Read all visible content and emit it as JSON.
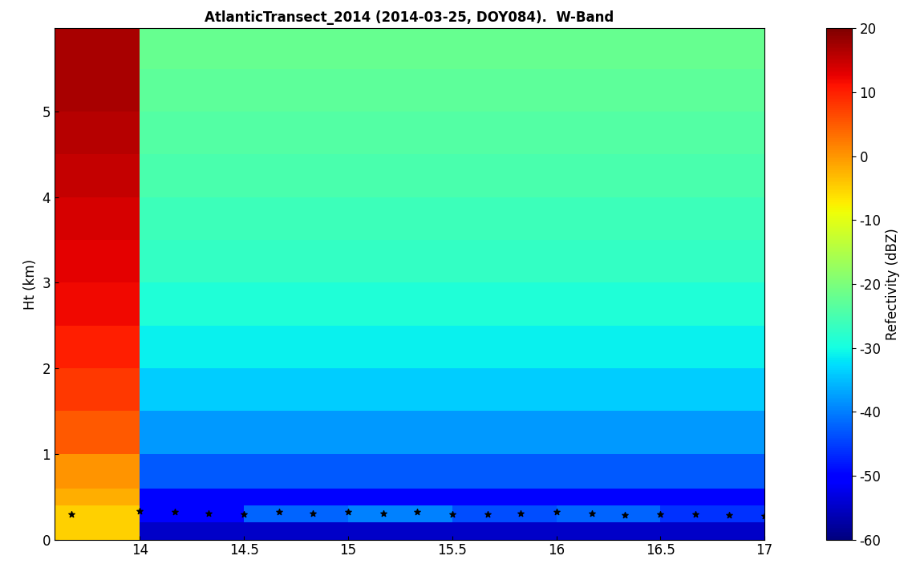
{
  "chart_data": {
    "type": "heatmap",
    "title": "AtlanticTransect_2014 (2014-03-25, DOY084).  W-Band",
    "ylabel": "Ht (km)",
    "xlim": [
      13.59,
      17
    ],
    "ylim": [
      0,
      5.97
    ],
    "xticks": [
      14,
      14.5,
      15,
      15.5,
      16,
      16.5,
      17
    ],
    "yticks": [
      0,
      1,
      2,
      3,
      4,
      5
    ],
    "x_edges": [
      13.59,
      14,
      14.5,
      15,
      15.5,
      16,
      16.5,
      17
    ],
    "y_edges": [
      0,
      0.2,
      0.4,
      0.6,
      1,
      1.5,
      2,
      2.5,
      3,
      3.5,
      4,
      4.5,
      5,
      5.5,
      5.97
    ],
    "cells": [
      [
        -5,
        -55,
        -55,
        -55,
        -55,
        -55,
        -55
      ],
      [
        -5,
        -50,
        -42,
        -40,
        -44,
        -42,
        -46
      ],
      [
        -2,
        -50,
        -50,
        -50,
        -50,
        -50,
        -50
      ],
      [
        0,
        -43,
        -43,
        -43,
        -43,
        -43,
        -43
      ],
      [
        5,
        -38,
        -38,
        -38,
        -38,
        -38,
        -38
      ],
      [
        8,
        -34,
        -34,
        -34,
        -34,
        -34,
        -34
      ],
      [
        10,
        -31,
        -31,
        -31,
        -31,
        -31,
        -31
      ],
      [
        12,
        -29,
        -29,
        -29,
        -29,
        -29,
        -29
      ],
      [
        13,
        -27,
        -27,
        -27,
        -27,
        -27,
        -27
      ],
      [
        14,
        -26,
        -26,
        -26,
        -26,
        -26,
        -26
      ],
      [
        15,
        -25,
        -25,
        -25,
        -25,
        -25,
        -25
      ],
      [
        16,
        -24,
        -24,
        -24,
        -24,
        -24,
        -24
      ],
      [
        17,
        -23,
        -23,
        -23,
        -23,
        -23,
        -23
      ],
      [
        17,
        -22,
        -22,
        -22,
        -22,
        -22,
        -22
      ]
    ],
    "colorbar_label": "Refectivity (dBZ)",
    "colorbar_range": [
      -60,
      20
    ],
    "colorbar_ticks": [
      -60,
      -50,
      -40,
      -30,
      -20,
      -10,
      0,
      10,
      20
    ],
    "points": {
      "type": "scatter",
      "marker": "star",
      "color": "black",
      "x": [
        13.67,
        14,
        14.17,
        14.33,
        14.5,
        14.67,
        14.83,
        15,
        15.17,
        15.33,
        15.5,
        15.67,
        15.83,
        16,
        16.17,
        16.33,
        16.5,
        16.67,
        16.83,
        17
      ],
      "y": [
        0.3,
        0.33,
        0.32,
        0.31,
        0.3,
        0.32,
        0.31,
        0.32,
        0.31,
        0.32,
        0.3,
        0.3,
        0.31,
        0.32,
        0.31,
        0.29,
        0.3,
        0.3,
        0.29,
        0.28
      ]
    }
  }
}
